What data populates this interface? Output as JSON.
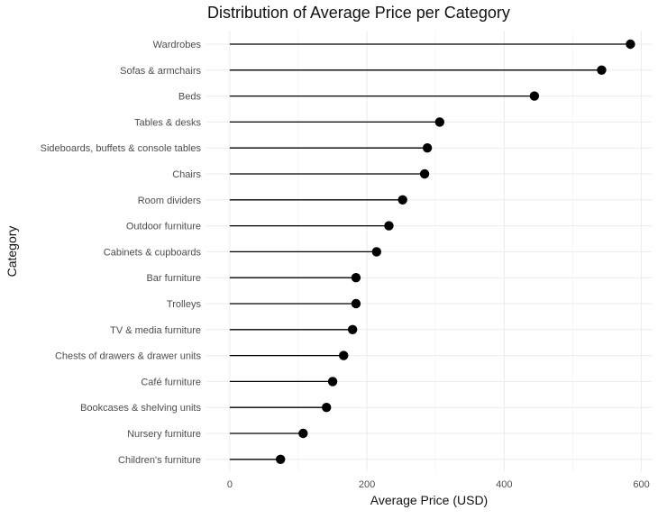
{
  "chart_data": {
    "type": "lollipop",
    "title": "Distribution of Average Price per Category",
    "xlabel": "Average Price (USD)",
    "ylabel": "Category",
    "xlim": [
      -34,
      615
    ],
    "xticks": [
      0,
      200,
      400,
      600
    ],
    "grid": true,
    "legend": "none",
    "colors": {
      "stem": "#000000",
      "point": "#000000",
      "grid": "#ebebeb",
      "tick_text": "#4d4d4d"
    },
    "categories": [
      "Wardrobes",
      "Sofas & armchairs",
      "Beds",
      "Tables & desks",
      "Sideboards, buffets & console tables",
      "Chairs",
      "Room dividers",
      "Outdoor furniture",
      "Cabinets & cupboards",
      "Bar furniture",
      "Trolleys",
      "TV & media furniture",
      "Chests of drawers & drawer units",
      "Café furniture",
      "Bookcases & shelving units",
      "Nursery furniture",
      "Children's furniture"
    ],
    "values": [
      584,
      542,
      444,
      306,
      288,
      284,
      252,
      232,
      214,
      184,
      184,
      179,
      166,
      150,
      141,
      107,
      74
    ]
  }
}
